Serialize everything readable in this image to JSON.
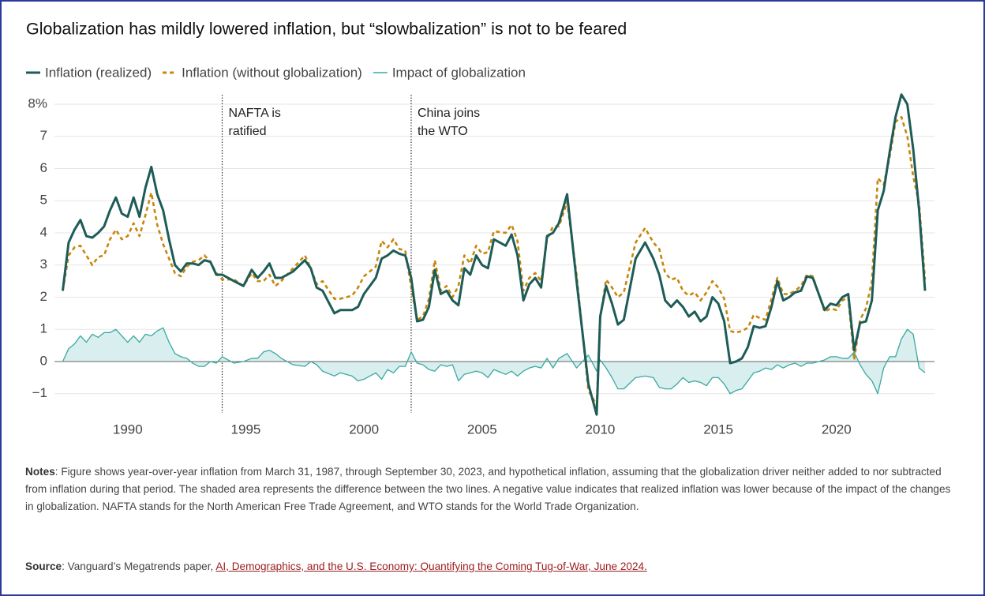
{
  "chart_data": {
    "type": "line",
    "title": "Globalization has mildly lowered inflation, but “slowbalization” is not to be feared",
    "x": [
      1987.25,
      1987.5,
      1987.75,
      1988,
      1988.25,
      1988.5,
      1988.75,
      1989,
      1989.25,
      1989.5,
      1989.75,
      1990,
      1990.25,
      1990.5,
      1990.75,
      1991,
      1991.25,
      1991.5,
      1991.75,
      1992,
      1992.25,
      1992.5,
      1992.75,
      1993,
      1993.25,
      1993.5,
      1993.75,
      1994,
      1994.5,
      1994.9,
      1995.25,
      1995.5,
      1995.75,
      1996,
      1996.25,
      1996.5,
      1997,
      1997.5,
      1997.75,
      1998,
      1998.25,
      1998.75,
      1999,
      1999.5,
      1999.75,
      2000,
      2000.5,
      2000.75,
      2001,
      2001.25,
      2001.5,
      2001.75,
      2002,
      2002.25,
      2002.5,
      2002.75,
      2003,
      2003.25,
      2003.5,
      2003.75,
      2004,
      2004.25,
      2004.5,
      2004.75,
      2005,
      2005.25,
      2005.5,
      2006,
      2006.25,
      2006.5,
      2006.75,
      2007,
      2007.25,
      2007.5,
      2007.75,
      2008,
      2008.25,
      2008.6,
      2009,
      2009.5,
      2009.85,
      2010,
      2010.25,
      2010.5,
      2010.75,
      2011,
      2011.5,
      2011.9,
      2012.25,
      2012.5,
      2012.75,
      2013,
      2013.25,
      2013.5,
      2013.75,
      2014,
      2014.25,
      2014.5,
      2014.75,
      2015,
      2015.25,
      2015.5,
      2015.75,
      2016,
      2016.25,
      2016.5,
      2016.75,
      2017,
      2017.25,
      2017.5,
      2017.75,
      2018,
      2018.25,
      2018.5,
      2018.75,
      2019,
      2019.25,
      2019.5,
      2019.75,
      2020,
      2020.25,
      2020.5,
      2020.75,
      2021,
      2021.25,
      2021.5,
      2021.75,
      2022,
      2022.25,
      2022.5,
      2022.75,
      2023,
      2023.25,
      2023.5,
      2023.75
    ],
    "series": [
      {
        "name": "Inflation (realized)",
        "color": "#1d5c57",
        "style": "solid",
        "values": [
          2.2,
          3.7,
          4.1,
          4.4,
          3.9,
          3.85,
          4.0,
          4.2,
          4.7,
          5.1,
          4.6,
          4.5,
          5.1,
          4.5,
          5.4,
          6.05,
          5.2,
          4.7,
          3.8,
          3.0,
          2.8,
          3.05,
          3.05,
          3.0,
          3.15,
          3.1,
          2.7,
          2.7,
          2.5,
          2.35,
          2.85,
          2.6,
          2.8,
          3.05,
          2.6,
          2.6,
          2.8,
          3.15,
          2.9,
          2.3,
          2.2,
          1.5,
          1.6,
          1.6,
          1.7,
          2.1,
          2.6,
          3.2,
          3.3,
          3.45,
          3.35,
          3.3,
          2.6,
          1.25,
          1.3,
          1.7,
          2.85,
          2.1,
          2.2,
          1.9,
          1.75,
          2.9,
          2.7,
          3.3,
          3.0,
          2.9,
          3.8,
          3.6,
          3.95,
          3.3,
          1.9,
          2.4,
          2.6,
          2.3,
          3.9,
          4.0,
          4.3,
          5.2,
          2.5,
          -0.7,
          -1.65,
          1.4,
          2.35,
          1.8,
          1.15,
          1.3,
          3.2,
          3.7,
          3.2,
          2.7,
          1.9,
          1.7,
          1.9,
          1.7,
          1.4,
          1.55,
          1.25,
          1.4,
          2.0,
          1.8,
          1.25,
          -0.05,
          0.0,
          0.1,
          0.45,
          1.1,
          1.05,
          1.1,
          1.7,
          2.5,
          1.9,
          2.0,
          2.15,
          2.2,
          2.65,
          2.6,
          2.1,
          1.6,
          1.8,
          1.75,
          2.0,
          2.1,
          0.35,
          1.2,
          1.25,
          1.9,
          4.7,
          5.3,
          6.5,
          7.6,
          8.3,
          8.0,
          6.6,
          4.7,
          2.2
        ]
      },
      {
        "name": "Inflation (without globalization)",
        "color": "#c8860b",
        "style": "dashed",
        "values": [
          2.2,
          3.3,
          3.55,
          3.6,
          3.3,
          3.0,
          3.25,
          3.3,
          3.8,
          4.1,
          3.8,
          3.9,
          4.3,
          3.9,
          4.55,
          5.25,
          4.25,
          3.65,
          3.2,
          2.75,
          2.65,
          2.95,
          3.1,
          3.15,
          3.3,
          3.1,
          2.75,
          2.55,
          2.55,
          2.35,
          2.75,
          2.5,
          2.5,
          2.7,
          2.35,
          2.5,
          2.9,
          3.3,
          2.9,
          2.4,
          2.5,
          1.95,
          1.95,
          2.05,
          2.3,
          2.65,
          2.95,
          3.75,
          3.55,
          3.8,
          3.5,
          3.45,
          2.3,
          1.3,
          1.4,
          1.95,
          3.15,
          2.2,
          2.35,
          2.0,
          2.35,
          3.3,
          3.05,
          3.6,
          3.35,
          3.4,
          4.05,
          4.0,
          4.25,
          3.75,
          2.2,
          2.6,
          2.75,
          2.5,
          3.8,
          4.2,
          4.2,
          4.95,
          2.7,
          -0.9,
          -1.35,
          1.35,
          2.55,
          2.3,
          2.0,
          2.15,
          3.7,
          4.15,
          3.7,
          3.5,
          2.75,
          2.55,
          2.6,
          2.2,
          2.05,
          2.15,
          1.9,
          2.15,
          2.5,
          2.3,
          1.95,
          0.95,
          0.9,
          0.95,
          1.05,
          1.45,
          1.35,
          1.3,
          1.95,
          2.6,
          2.1,
          2.1,
          2.2,
          2.35,
          2.7,
          2.65,
          2.1,
          1.55,
          1.65,
          1.6,
          1.9,
          2.0,
          0.05,
          1.3,
          1.65,
          2.5,
          5.7,
          5.5,
          6.35,
          7.45,
          7.6,
          7.0,
          5.75,
          4.9,
          2.55
        ]
      },
      {
        "name": "Impact of globalization",
        "color": "#3aa8a0",
        "style": "thin",
        "fill": "#d9eeee",
        "values": [
          0.0,
          0.4,
          0.55,
          0.8,
          0.6,
          0.85,
          0.75,
          0.9,
          0.9,
          1.0,
          0.8,
          0.6,
          0.8,
          0.6,
          0.85,
          0.8,
          0.95,
          1.05,
          0.6,
          0.25,
          0.15,
          0.1,
          -0.05,
          -0.15,
          -0.15,
          0.0,
          -0.05,
          0.15,
          -0.05,
          0.0,
          0.1,
          0.1,
          0.3,
          0.35,
          0.25,
          0.1,
          -0.1,
          -0.15,
          0.0,
          -0.1,
          -0.3,
          -0.45,
          -0.35,
          -0.45,
          -0.6,
          -0.55,
          -0.35,
          -0.55,
          -0.25,
          -0.35,
          -0.15,
          -0.15,
          0.3,
          -0.05,
          -0.1,
          -0.25,
          -0.3,
          -0.1,
          -0.15,
          -0.1,
          -0.6,
          -0.4,
          -0.35,
          -0.3,
          -0.35,
          -0.5,
          -0.25,
          -0.4,
          -0.3,
          -0.45,
          -0.3,
          -0.2,
          -0.15,
          -0.2,
          0.1,
          -0.2,
          0.1,
          0.25,
          -0.2,
          0.2,
          -0.3,
          0.05,
          -0.2,
          -0.5,
          -0.85,
          -0.85,
          -0.5,
          -0.45,
          -0.5,
          -0.8,
          -0.85,
          -0.85,
          -0.7,
          -0.5,
          -0.65,
          -0.6,
          -0.65,
          -0.75,
          -0.5,
          -0.5,
          -0.7,
          -1.0,
          -0.9,
          -0.85,
          -0.6,
          -0.35,
          -0.3,
          -0.2,
          -0.25,
          -0.1,
          -0.2,
          -0.1,
          -0.05,
          -0.15,
          -0.05,
          -0.05,
          0.0,
          0.05,
          0.15,
          0.15,
          0.1,
          0.1,
          0.3,
          -0.1,
          -0.4,
          -0.6,
          -1.0,
          -0.2,
          0.15,
          0.15,
          0.7,
          1.0,
          0.85,
          -0.2,
          -0.35
        ]
      }
    ],
    "xlim": [
      1986.9,
      2024.15
    ],
    "xticks": [
      1990,
      1995,
      2000,
      2005,
      2010,
      2015,
      2020
    ],
    "ylim": [
      -2,
      8.5
    ],
    "yticks": [
      {
        "value": -1,
        "label": "−1"
      },
      0,
      1,
      2,
      3,
      4,
      5,
      6,
      7,
      {
        "value": 8,
        "label": "8%"
      }
    ],
    "grid": true,
    "legend": "top-left",
    "annotations": [
      {
        "x": 1994,
        "lines": [
          "NAFTA is",
          "ratified"
        ]
      },
      {
        "x": 2002,
        "lines": [
          "China joins",
          "the WTO"
        ]
      }
    ]
  },
  "notes": {
    "label": "Notes",
    "text": ": Figure shows year-over-year inflation from March 31, 1987, through September 30, 2023, and hypothetical inflation, assuming that the globalization driver neither added to nor subtracted from inflation during that period. The shaded area represents the difference between the two lines. A negative value indicates that realized inflation was lower because of the impact of the changes in globalization. NAFTA stands for the North American Free Trade Agreement, and WTO stands for the World Trade Organization."
  },
  "source": {
    "label": "Source",
    "text": ": Vanguard’s Megatrends paper, ",
    "link": "AI, Demographics, and the U.S. Economy: Quantifying the Coming Tug-of-War, June 2024."
  }
}
